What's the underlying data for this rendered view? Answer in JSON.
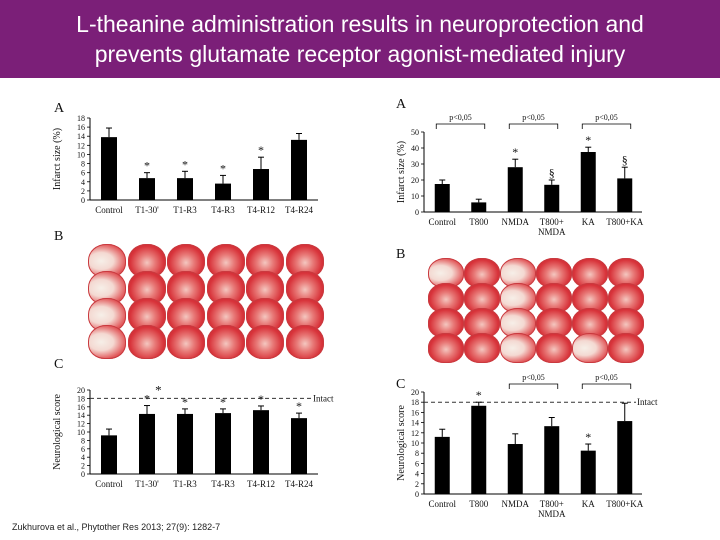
{
  "slide": {
    "title_line1": "L-theanine administration results in neuroprotection and",
    "title_line2": "prevents glutamate receptor agonist-mediated injury",
    "citation": "Zukhurova et al., Phytother Res 2013; 27(9): 1282-7",
    "colors": {
      "title_bg": "#7b1f78",
      "bar": "#000000",
      "brain_red": "#d8343b"
    }
  },
  "chart_data": [
    {
      "type": "bar",
      "panel": "A",
      "ylabel": "Infarct size (%)",
      "ylim": [
        0,
        18
      ],
      "yticks": [
        0,
        2,
        4,
        6,
        8,
        10,
        12,
        14,
        16,
        18
      ],
      "categories": [
        "Control",
        "T1-30'",
        "T1-R3",
        "T4-R3",
        "T4-R12",
        "T4-R24"
      ],
      "values": [
        13.8,
        4.8,
        4.8,
        3.6,
        6.8,
        13.2
      ],
      "errors": [
        2.0,
        1.2,
        1.5,
        1.8,
        2.6,
        1.4
      ],
      "markers": [
        "",
        "*",
        "*",
        "*",
        "*",
        ""
      ]
    },
    {
      "type": "bar",
      "panel": "C",
      "ylabel": "Neurological score",
      "ylim": [
        0,
        20
      ],
      "yticks": [
        0,
        2,
        4,
        6,
        8,
        10,
        12,
        14,
        16,
        18,
        20
      ],
      "categories": [
        "Control",
        "T1-30'",
        "T1-R3",
        "T4-R3",
        "T4-R12",
        "T4-R24"
      ],
      "values": [
        9.2,
        14.3,
        14.3,
        14.5,
        15.2,
        13.3
      ],
      "errors": [
        1.5,
        2.0,
        1.2,
        1.0,
        1.0,
        1.2
      ],
      "markers": [
        "",
        "*",
        "*",
        "*",
        "*",
        "*"
      ],
      "reference_line": {
        "value": 18,
        "label": "Intact"
      },
      "annotation": "*"
    },
    {
      "type": "bar",
      "panel": "A",
      "ylabel": "Infarct size (%)",
      "ylim": [
        0,
        50
      ],
      "yticks": [
        0,
        10,
        20,
        30,
        40,
        50
      ],
      "categories": [
        "Control",
        "T800",
        "NMDA",
        "T800+\nNMDA",
        "KA",
        "T800+KA"
      ],
      "values": [
        17.5,
        6.0,
        28.0,
        17.0,
        37.5,
        21.0
      ],
      "errors": [
        2.5,
        2.0,
        5.0,
        3.0,
        3.0,
        7.0
      ],
      "markers": [
        "",
        "",
        "*",
        "§",
        "*",
        "§"
      ],
      "comparisons": [
        {
          "from": 0,
          "to": 1,
          "label": "p<0,05"
        },
        {
          "from": 2,
          "to": 3,
          "label": "p<0,05"
        },
        {
          "from": 4,
          "to": 5,
          "label": "p<0,05"
        }
      ]
    },
    {
      "type": "bar",
      "panel": "C",
      "ylabel": "Neurological score",
      "ylim": [
        0,
        20
      ],
      "yticks": [
        0,
        2,
        4,
        6,
        8,
        10,
        12,
        14,
        16,
        18,
        20
      ],
      "categories": [
        "Control",
        "T800",
        "NMDA",
        "T800+\nNMDA",
        "KA",
        "T800+KA"
      ],
      "values": [
        11.2,
        17.3,
        9.8,
        13.3,
        8.5,
        14.3
      ],
      "errors": [
        1.5,
        0.7,
        2.0,
        1.7,
        1.3,
        3.5
      ],
      "markers": [
        "",
        "*",
        "",
        "",
        "*",
        ""
      ],
      "reference_line": {
        "value": 18,
        "label": "Intact"
      },
      "comparisons": [
        {
          "from": 2,
          "to": 3,
          "label": "p<0,05"
        },
        {
          "from": 4,
          "to": 5,
          "label": "p<0,05"
        }
      ]
    }
  ],
  "images": {
    "left_label": "B",
    "right_label": "B"
  }
}
